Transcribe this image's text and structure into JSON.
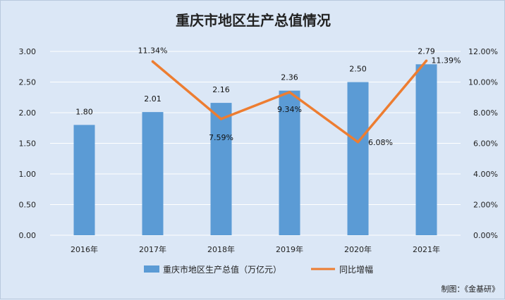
{
  "chart_data": {
    "type": "bar+line",
    "title": "重庆市地区生产总值情况",
    "categories": [
      "2016年",
      "2017年",
      "2018年",
      "2019年",
      "2020年",
      "2021年"
    ],
    "series": [
      {
        "name": "重庆市地区生产总值（万亿元）",
        "type": "bar",
        "axis": "left",
        "values": [
          1.8,
          2.01,
          2.16,
          2.36,
          2.5,
          2.79
        ],
        "labels": [
          "1.80",
          "2.01",
          "2.16",
          "2.36",
          "2.50",
          "2.79"
        ],
        "color": "#5b9bd5"
      },
      {
        "name": "同比增幅",
        "type": "line",
        "axis": "right",
        "values": [
          null,
          11.34,
          7.59,
          9.34,
          6.08,
          11.39
        ],
        "labels": [
          "",
          "11.34%",
          "7.59%",
          "9.34%",
          "6.08%",
          "11.39%"
        ],
        "color": "#ed7d31"
      }
    ],
    "y_left": {
      "min": 0,
      "max": 3.0,
      "ticks": [
        "0.00",
        "0.50",
        "1.00",
        "1.50",
        "2.00",
        "2.50",
        "3.00"
      ]
    },
    "y_right": {
      "min": 0,
      "max": 12,
      "ticks": [
        "0.00%",
        "2.00%",
        "4.00%",
        "6.00%",
        "8.00%",
        "10.00%",
        "12.00%"
      ]
    },
    "grid": true,
    "legend_position": "bottom",
    "credit": "制图：《金基研》"
  }
}
